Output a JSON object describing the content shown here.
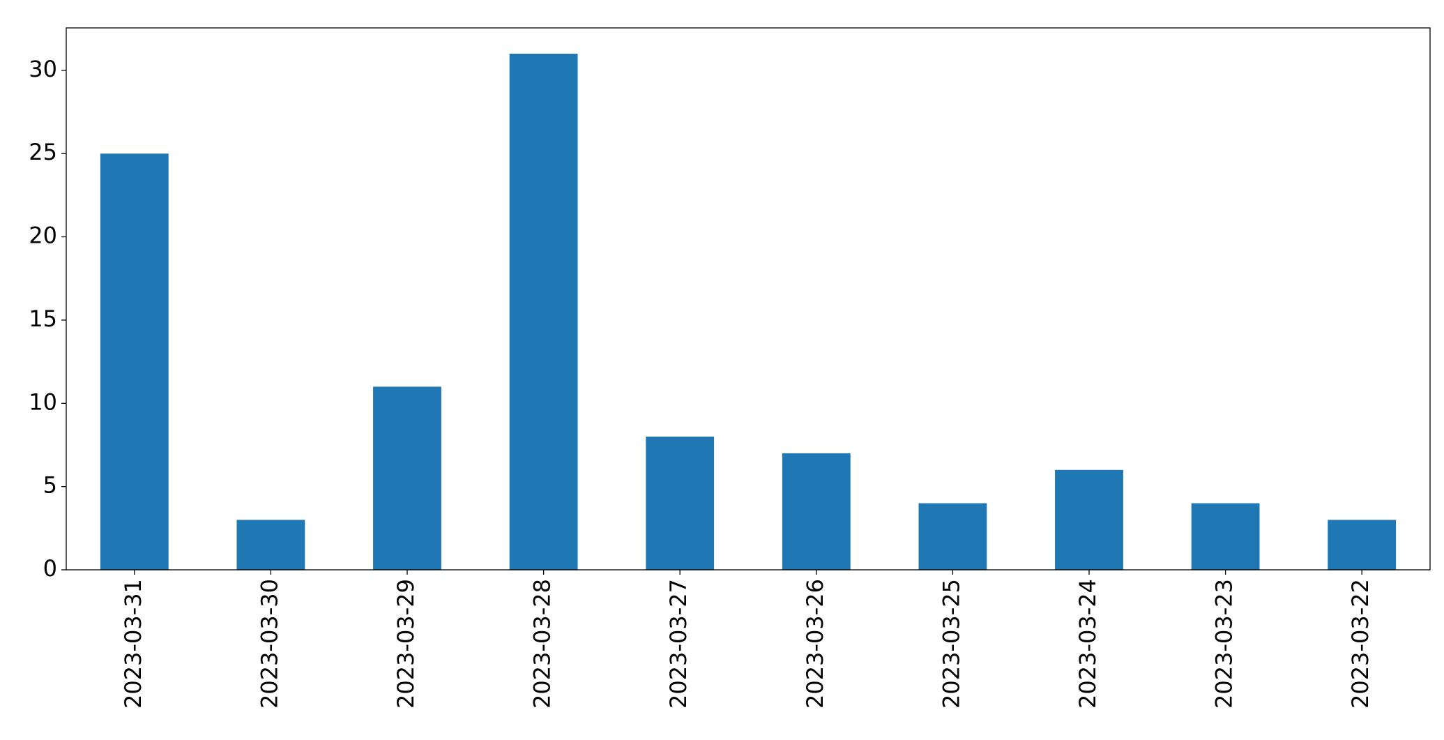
{
  "chart_data": {
    "type": "bar",
    "categories": [
      "2023-03-31",
      "2023-03-30",
      "2023-03-29",
      "2023-03-28",
      "2023-03-27",
      "2023-03-26",
      "2023-03-25",
      "2023-03-24",
      "2023-03-23",
      "2023-03-22"
    ],
    "values": [
      25,
      3,
      11,
      31,
      8,
      7,
      4,
      6,
      4,
      3
    ],
    "color": "#1f77b4",
    "ylim": [
      0,
      32.55
    ],
    "yticks": [
      0,
      5,
      10,
      15,
      20,
      25,
      30
    ],
    "grid": false
  }
}
